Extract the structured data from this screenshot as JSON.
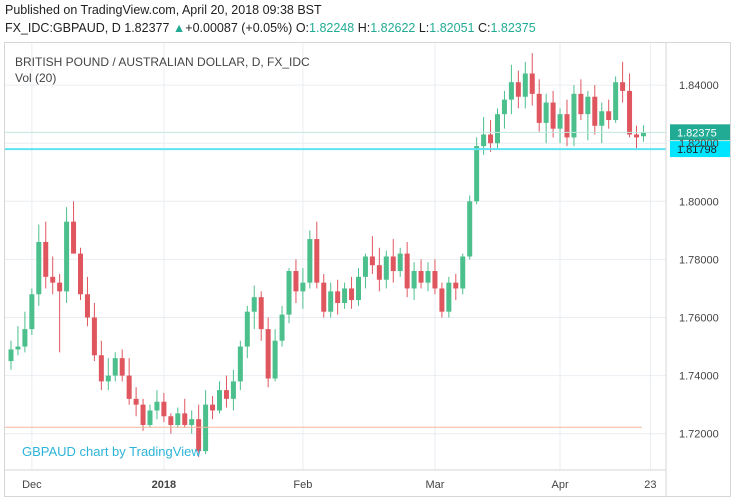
{
  "header": {
    "line1": "Published on TradingView.com, April 20, 2018 09:38 BST",
    "symbol": "FX_IDC:GBPAUD, D",
    "last": "1.82377",
    "change_arrow": "▲",
    "change": "+0.00087 (+0.05%)",
    "o_label": "O:",
    "o_value": "1.82248",
    "h_label": "H:",
    "h_value": "1.82622",
    "l_label": "L:",
    "l_value": "1.82051",
    "c_label": "C:",
    "c_value": "1.82375"
  },
  "legend": {
    "title": "BRITISH POUND / AUSTRALIAN DOLLAR, D, FX_IDC",
    "volume": "Vol (20)"
  },
  "watermark": "GBPAUD chart by TradingView",
  "colors": {
    "up": "#4bbf8c",
    "down": "#e0565f",
    "grid": "#e9edf2",
    "hline": "#5fe3f2",
    "price_tag": "#22ab94",
    "hline_tag": "#00e5ff",
    "support_line": "#f4b79f",
    "watermark": "#2cb4d8"
  },
  "chart_data": {
    "type": "candlestick",
    "title": "BRITISH POUND / AUSTRALIAN DOLLAR, D, FX_IDC",
    "x_ticks": [
      "Dec",
      "2018",
      "Feb",
      "Mar",
      "Apr",
      "23"
    ],
    "y_ticks": [
      "1.72000",
      "1.74000",
      "1.76000",
      "1.78000",
      "1.80000",
      "1.82000",
      "1.84000"
    ],
    "ylim": [
      1.7075,
      1.8545
    ],
    "last_price_label": "1.82375",
    "last_price": 1.82375,
    "horizontal_line_label": "1.81798",
    "horizontal_line": 1.81798,
    "support_line": 1.7222,
    "candles": [
      {
        "o": 1.745,
        "h": 1.752,
        "l": 1.742,
        "c": 1.749
      },
      {
        "o": 1.749,
        "h": 1.757,
        "l": 1.747,
        "c": 1.75
      },
      {
        "o": 1.75,
        "h": 1.762,
        "l": 1.748,
        "c": 1.756
      },
      {
        "o": 1.756,
        "h": 1.77,
        "l": 1.754,
        "c": 1.768
      },
      {
        "o": 1.768,
        "h": 1.792,
        "l": 1.764,
        "c": 1.786
      },
      {
        "o": 1.786,
        "h": 1.793,
        "l": 1.77,
        "c": 1.774
      },
      {
        "o": 1.774,
        "h": 1.781,
        "l": 1.768,
        "c": 1.772
      },
      {
        "o": 1.772,
        "h": 1.775,
        "l": 1.748,
        "c": 1.769
      },
      {
        "o": 1.769,
        "h": 1.798,
        "l": 1.765,
        "c": 1.793
      },
      {
        "o": 1.793,
        "h": 1.8,
        "l": 1.782,
        "c": 1.782
      },
      {
        "o": 1.782,
        "h": 1.784,
        "l": 1.766,
        "c": 1.768
      },
      {
        "o": 1.768,
        "h": 1.774,
        "l": 1.757,
        "c": 1.76
      },
      {
        "o": 1.76,
        "h": 1.765,
        "l": 1.745,
        "c": 1.747
      },
      {
        "o": 1.747,
        "h": 1.752,
        "l": 1.735,
        "c": 1.738
      },
      {
        "o": 1.738,
        "h": 1.746,
        "l": 1.735,
        "c": 1.74
      },
      {
        "o": 1.74,
        "h": 1.748,
        "l": 1.738,
        "c": 1.746
      },
      {
        "o": 1.746,
        "h": 1.749,
        "l": 1.738,
        "c": 1.74
      },
      {
        "o": 1.74,
        "h": 1.746,
        "l": 1.73,
        "c": 1.732
      },
      {
        "o": 1.732,
        "h": 1.736,
        "l": 1.726,
        "c": 1.73
      },
      {
        "o": 1.73,
        "h": 1.732,
        "l": 1.721,
        "c": 1.723
      },
      {
        "o": 1.723,
        "h": 1.73,
        "l": 1.722,
        "c": 1.728
      },
      {
        "o": 1.728,
        "h": 1.735,
        "l": 1.725,
        "c": 1.731
      },
      {
        "o": 1.731,
        "h": 1.734,
        "l": 1.724,
        "c": 1.726
      },
      {
        "o": 1.726,
        "h": 1.727,
        "l": 1.72,
        "c": 1.723
      },
      {
        "o": 1.723,
        "h": 1.729,
        "l": 1.722,
        "c": 1.727
      },
      {
        "o": 1.727,
        "h": 1.732,
        "l": 1.722,
        "c": 1.723
      },
      {
        "o": 1.723,
        "h": 1.728,
        "l": 1.72,
        "c": 1.725
      },
      {
        "o": 1.725,
        "h": 1.73,
        "l": 1.712,
        "c": 1.714
      },
      {
        "o": 1.714,
        "h": 1.735,
        "l": 1.713,
        "c": 1.73
      },
      {
        "o": 1.73,
        "h": 1.733,
        "l": 1.725,
        "c": 1.728
      },
      {
        "o": 1.728,
        "h": 1.738,
        "l": 1.727,
        "c": 1.735
      },
      {
        "o": 1.735,
        "h": 1.74,
        "l": 1.729,
        "c": 1.732
      },
      {
        "o": 1.732,
        "h": 1.742,
        "l": 1.728,
        "c": 1.738
      },
      {
        "o": 1.738,
        "h": 1.752,
        "l": 1.735,
        "c": 1.75
      },
      {
        "o": 1.75,
        "h": 1.764,
        "l": 1.746,
        "c": 1.762
      },
      {
        "o": 1.762,
        "h": 1.771,
        "l": 1.756,
        "c": 1.767
      },
      {
        "o": 1.767,
        "h": 1.769,
        "l": 1.752,
        "c": 1.756
      },
      {
        "o": 1.756,
        "h": 1.76,
        "l": 1.736,
        "c": 1.739
      },
      {
        "o": 1.739,
        "h": 1.756,
        "l": 1.738,
        "c": 1.752
      },
      {
        "o": 1.752,
        "h": 1.764,
        "l": 1.75,
        "c": 1.761
      },
      {
        "o": 1.761,
        "h": 1.777,
        "l": 1.758,
        "c": 1.776
      },
      {
        "o": 1.776,
        "h": 1.78,
        "l": 1.765,
        "c": 1.769
      },
      {
        "o": 1.769,
        "h": 1.777,
        "l": 1.763,
        "c": 1.772
      },
      {
        "o": 1.772,
        "h": 1.79,
        "l": 1.77,
        "c": 1.787
      },
      {
        "o": 1.787,
        "h": 1.793,
        "l": 1.77,
        "c": 1.772
      },
      {
        "o": 1.772,
        "h": 1.775,
        "l": 1.76,
        "c": 1.762
      },
      {
        "o": 1.762,
        "h": 1.772,
        "l": 1.76,
        "c": 1.769
      },
      {
        "o": 1.769,
        "h": 1.773,
        "l": 1.761,
        "c": 1.765
      },
      {
        "o": 1.765,
        "h": 1.772,
        "l": 1.763,
        "c": 1.77
      },
      {
        "o": 1.77,
        "h": 1.774,
        "l": 1.763,
        "c": 1.766
      },
      {
        "o": 1.766,
        "h": 1.777,
        "l": 1.764,
        "c": 1.774
      },
      {
        "o": 1.774,
        "h": 1.782,
        "l": 1.77,
        "c": 1.781
      },
      {
        "o": 1.781,
        "h": 1.788,
        "l": 1.775,
        "c": 1.778
      },
      {
        "o": 1.778,
        "h": 1.784,
        "l": 1.769,
        "c": 1.773
      },
      {
        "o": 1.773,
        "h": 1.783,
        "l": 1.77,
        "c": 1.781
      },
      {
        "o": 1.781,
        "h": 1.787,
        "l": 1.772,
        "c": 1.776
      },
      {
        "o": 1.776,
        "h": 1.784,
        "l": 1.774,
        "c": 1.782
      },
      {
        "o": 1.782,
        "h": 1.786,
        "l": 1.767,
        "c": 1.77
      },
      {
        "o": 1.77,
        "h": 1.779,
        "l": 1.766,
        "c": 1.776
      },
      {
        "o": 1.776,
        "h": 1.78,
        "l": 1.77,
        "c": 1.772
      },
      {
        "o": 1.772,
        "h": 1.779,
        "l": 1.769,
        "c": 1.776
      },
      {
        "o": 1.776,
        "h": 1.78,
        "l": 1.768,
        "c": 1.77
      },
      {
        "o": 1.77,
        "h": 1.772,
        "l": 1.76,
        "c": 1.762
      },
      {
        "o": 1.762,
        "h": 1.774,
        "l": 1.76,
        "c": 1.772
      },
      {
        "o": 1.772,
        "h": 1.775,
        "l": 1.766,
        "c": 1.77
      },
      {
        "o": 1.77,
        "h": 1.782,
        "l": 1.768,
        "c": 1.781
      },
      {
        "o": 1.781,
        "h": 1.802,
        "l": 1.78,
        "c": 1.8
      },
      {
        "o": 1.8,
        "h": 1.822,
        "l": 1.799,
        "c": 1.819
      },
      {
        "o": 1.819,
        "h": 1.829,
        "l": 1.816,
        "c": 1.823
      },
      {
        "o": 1.823,
        "h": 1.828,
        "l": 1.817,
        "c": 1.82
      },
      {
        "o": 1.82,
        "h": 1.832,
        "l": 1.818,
        "c": 1.83
      },
      {
        "o": 1.83,
        "h": 1.838,
        "l": 1.825,
        "c": 1.835
      },
      {
        "o": 1.835,
        "h": 1.847,
        "l": 1.83,
        "c": 1.841
      },
      {
        "o": 1.841,
        "h": 1.845,
        "l": 1.832,
        "c": 1.836
      },
      {
        "o": 1.836,
        "h": 1.848,
        "l": 1.832,
        "c": 1.844
      },
      {
        "o": 1.844,
        "h": 1.851,
        "l": 1.833,
        "c": 1.837
      },
      {
        "o": 1.837,
        "h": 1.842,
        "l": 1.824,
        "c": 1.827
      },
      {
        "o": 1.827,
        "h": 1.837,
        "l": 1.82,
        "c": 1.834
      },
      {
        "o": 1.834,
        "h": 1.838,
        "l": 1.822,
        "c": 1.825
      },
      {
        "o": 1.825,
        "h": 1.832,
        "l": 1.82,
        "c": 1.83
      },
      {
        "o": 1.83,
        "h": 1.835,
        "l": 1.819,
        "c": 1.822
      },
      {
        "o": 1.822,
        "h": 1.84,
        "l": 1.819,
        "c": 1.837
      },
      {
        "o": 1.837,
        "h": 1.842,
        "l": 1.828,
        "c": 1.83
      },
      {
        "o": 1.83,
        "h": 1.838,
        "l": 1.821,
        "c": 1.836
      },
      {
        "o": 1.836,
        "h": 1.84,
        "l": 1.823,
        "c": 1.826
      },
      {
        "o": 1.826,
        "h": 1.834,
        "l": 1.82,
        "c": 1.831
      },
      {
        "o": 1.831,
        "h": 1.835,
        "l": 1.825,
        "c": 1.828
      },
      {
        "o": 1.828,
        "h": 1.843,
        "l": 1.827,
        "c": 1.841
      },
      {
        "o": 1.841,
        "h": 1.848,
        "l": 1.834,
        "c": 1.838
      },
      {
        "o": 1.838,
        "h": 1.844,
        "l": 1.822,
        "c": 1.823
      },
      {
        "o": 1.823,
        "h": 1.826,
        "l": 1.818,
        "c": 1.822
      },
      {
        "o": 1.8224,
        "h": 1.8262,
        "l": 1.8205,
        "c": 1.8237
      }
    ]
  }
}
